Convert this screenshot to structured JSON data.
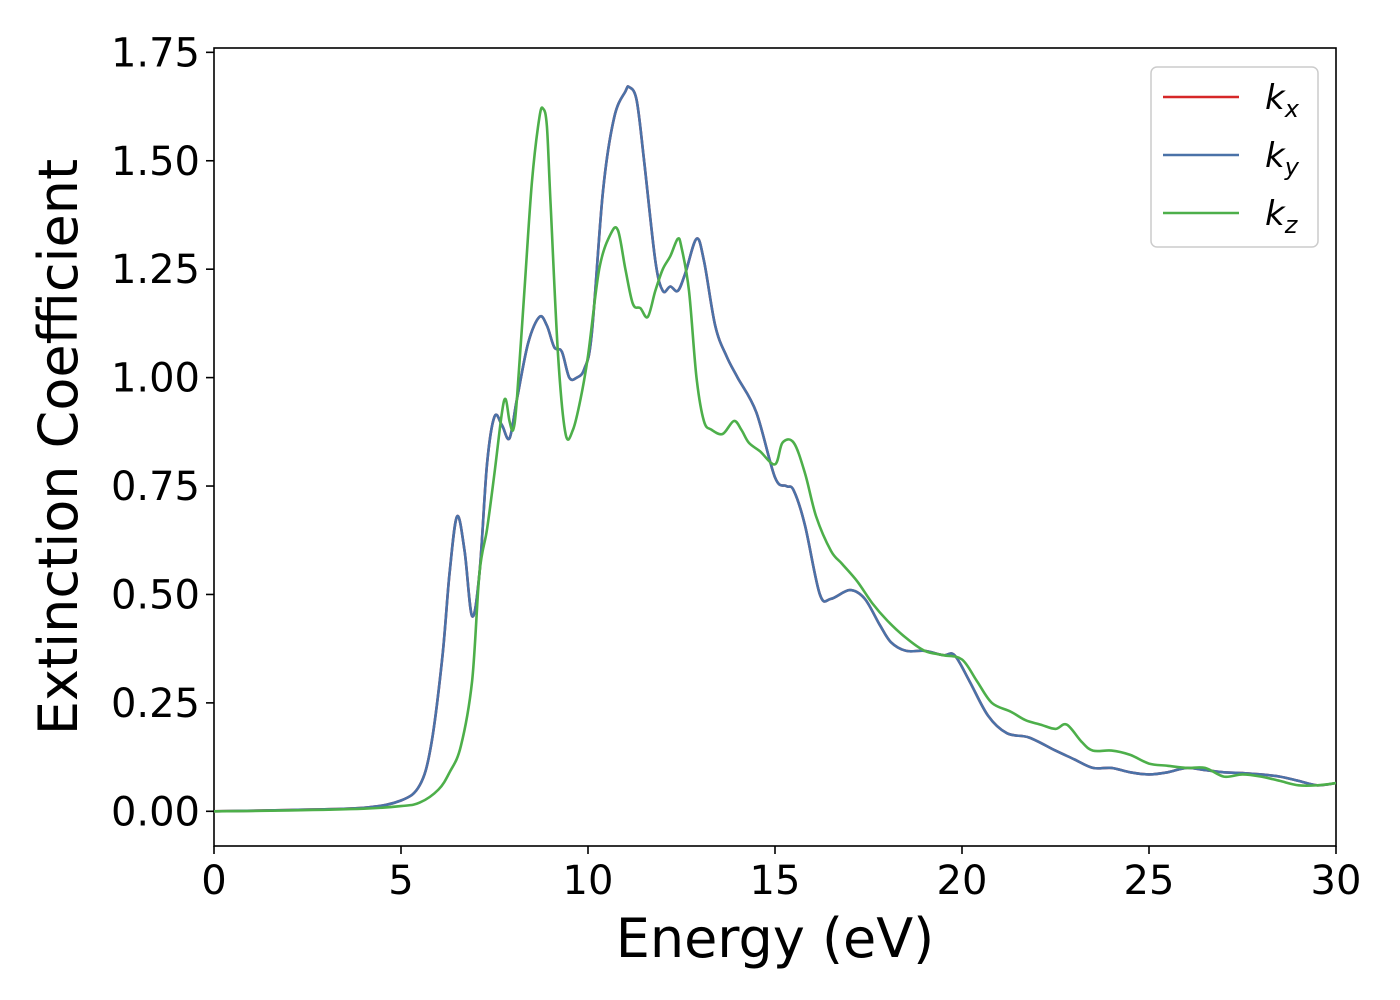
{
  "chart_data": {
    "type": "line",
    "xlabel": "Energy (eV)",
    "ylabel": "Extinction Coefficient",
    "xlim": [
      0,
      30
    ],
    "ylim": [
      -0.08,
      1.76
    ],
    "xticks": [
      0,
      5,
      10,
      15,
      20,
      25,
      30
    ],
    "xtick_labels": [
      "0",
      "5",
      "10",
      "15",
      "20",
      "25",
      "30"
    ],
    "yticks": [
      0.0,
      0.25,
      0.5,
      0.75,
      1.0,
      1.25,
      1.5,
      1.75
    ],
    "ytick_labels": [
      "0.00",
      "0.25",
      "0.50",
      "0.75",
      "1.00",
      "1.25",
      "1.50",
      "1.75"
    ],
    "grid": false,
    "legend_position": "top-right",
    "series": [
      {
        "name": "k_x",
        "label_base": "k",
        "label_sub": "x",
        "color": "#d62728",
        "x": [
          0,
          2,
          4,
          5,
          5.5,
          5.8,
          6.1,
          6.3,
          6.5,
          6.7,
          6.9,
          7.1,
          7.3,
          7.5,
          7.7,
          7.9,
          8.1,
          8.4,
          8.7,
          8.9,
          9.1,
          9.3,
          9.5,
          9.7,
          9.9,
          10.1,
          10.4,
          10.7,
          11.0,
          11.1,
          11.3,
          11.5,
          11.8,
          12.0,
          12.2,
          12.4,
          12.6,
          12.9,
          13.1,
          13.4,
          13.7,
          14.0,
          14.5,
          15.0,
          15.3,
          15.5,
          15.8,
          16.2,
          16.5,
          17.0,
          17.4,
          17.8,
          18.1,
          18.5,
          19.0,
          19.5,
          19.8,
          20.2,
          20.7,
          21.2,
          21.8,
          22.5,
          23.0,
          23.5,
          24.0,
          24.5,
          25.0,
          25.5,
          26.0,
          26.5,
          27.0,
          27.5,
          28.0,
          28.5,
          29.0,
          29.5,
          30.0
        ],
        "y": [
          0.0,
          0.003,
          0.008,
          0.025,
          0.06,
          0.15,
          0.35,
          0.55,
          0.68,
          0.6,
          0.45,
          0.55,
          0.8,
          0.91,
          0.89,
          0.86,
          0.95,
          1.08,
          1.14,
          1.12,
          1.07,
          1.06,
          1.0,
          1.0,
          1.02,
          1.1,
          1.43,
          1.6,
          1.66,
          1.67,
          1.64,
          1.5,
          1.27,
          1.2,
          1.21,
          1.2,
          1.24,
          1.32,
          1.27,
          1.12,
          1.05,
          1.0,
          0.92,
          0.77,
          0.75,
          0.74,
          0.66,
          0.5,
          0.49,
          0.51,
          0.49,
          0.43,
          0.39,
          0.37,
          0.37,
          0.36,
          0.36,
          0.3,
          0.22,
          0.18,
          0.17,
          0.14,
          0.12,
          0.1,
          0.1,
          0.09,
          0.085,
          0.09,
          0.1,
          0.095,
          0.09,
          0.088,
          0.085,
          0.08,
          0.07,
          0.06,
          0.065
        ]
      },
      {
        "name": "k_y",
        "label_base": "k",
        "label_sub": "y",
        "color": "#4a72a8",
        "x": [
          0,
          2,
          4,
          5,
          5.5,
          5.8,
          6.1,
          6.3,
          6.5,
          6.7,
          6.9,
          7.1,
          7.3,
          7.5,
          7.7,
          7.9,
          8.1,
          8.4,
          8.7,
          8.9,
          9.1,
          9.3,
          9.5,
          9.7,
          9.9,
          10.1,
          10.4,
          10.7,
          11.0,
          11.1,
          11.3,
          11.5,
          11.8,
          12.0,
          12.2,
          12.4,
          12.6,
          12.9,
          13.1,
          13.4,
          13.7,
          14.0,
          14.5,
          15.0,
          15.3,
          15.5,
          15.8,
          16.2,
          16.5,
          17.0,
          17.4,
          17.8,
          18.1,
          18.5,
          19.0,
          19.5,
          19.8,
          20.2,
          20.7,
          21.2,
          21.8,
          22.5,
          23.0,
          23.5,
          24.0,
          24.5,
          25.0,
          25.5,
          26.0,
          26.5,
          27.0,
          27.5,
          28.0,
          28.5,
          29.0,
          29.5,
          30.0
        ],
        "y": [
          0.0,
          0.003,
          0.008,
          0.025,
          0.06,
          0.15,
          0.35,
          0.55,
          0.68,
          0.6,
          0.45,
          0.55,
          0.8,
          0.91,
          0.89,
          0.86,
          0.95,
          1.08,
          1.14,
          1.12,
          1.07,
          1.06,
          1.0,
          1.0,
          1.02,
          1.1,
          1.43,
          1.6,
          1.66,
          1.67,
          1.64,
          1.5,
          1.27,
          1.2,
          1.21,
          1.2,
          1.24,
          1.32,
          1.27,
          1.12,
          1.05,
          1.0,
          0.92,
          0.77,
          0.75,
          0.74,
          0.66,
          0.5,
          0.49,
          0.51,
          0.49,
          0.43,
          0.39,
          0.37,
          0.37,
          0.36,
          0.36,
          0.3,
          0.22,
          0.18,
          0.17,
          0.14,
          0.12,
          0.1,
          0.1,
          0.09,
          0.085,
          0.09,
          0.1,
          0.095,
          0.09,
          0.088,
          0.085,
          0.08,
          0.07,
          0.06,
          0.065
        ]
      },
      {
        "name": "k_z",
        "label_base": "k",
        "label_sub": "z",
        "color": "#4daf4a",
        "x": [
          0,
          2,
          4,
          5,
          5.5,
          6.0,
          6.3,
          6.6,
          6.9,
          7.1,
          7.3,
          7.5,
          7.7,
          7.8,
          7.9,
          8.0,
          8.1,
          8.3,
          8.5,
          8.7,
          8.8,
          8.9,
          9.0,
          9.2,
          9.4,
          9.6,
          9.8,
          10.0,
          10.3,
          10.6,
          10.8,
          11.0,
          11.2,
          11.4,
          11.6,
          11.8,
          12.0,
          12.2,
          12.4,
          12.5,
          12.7,
          12.9,
          13.1,
          13.3,
          13.6,
          13.9,
          14.1,
          14.3,
          14.6,
          15.0,
          15.2,
          15.5,
          15.8,
          16.1,
          16.5,
          16.8,
          17.2,
          17.6,
          18.0,
          18.5,
          19.0,
          19.5,
          20.0,
          20.4,
          20.8,
          21.3,
          21.7,
          22.1,
          22.5,
          22.8,
          23.2,
          23.5,
          24.0,
          24.5,
          25.0,
          25.5,
          26.0,
          26.5,
          27.0,
          27.5,
          28.0,
          28.5,
          29.0,
          29.5,
          30.0
        ],
        "y": [
          0.0,
          0.002,
          0.006,
          0.012,
          0.02,
          0.05,
          0.09,
          0.15,
          0.3,
          0.55,
          0.65,
          0.78,
          0.92,
          0.95,
          0.9,
          0.88,
          0.95,
          1.2,
          1.45,
          1.6,
          1.62,
          1.58,
          1.4,
          1.05,
          0.87,
          0.88,
          0.95,
          1.05,
          1.25,
          1.33,
          1.34,
          1.25,
          1.17,
          1.16,
          1.14,
          1.2,
          1.25,
          1.28,
          1.32,
          1.3,
          1.2,
          1.0,
          0.9,
          0.88,
          0.87,
          0.9,
          0.88,
          0.85,
          0.83,
          0.8,
          0.85,
          0.85,
          0.78,
          0.68,
          0.6,
          0.57,
          0.53,
          0.48,
          0.44,
          0.4,
          0.37,
          0.36,
          0.35,
          0.3,
          0.25,
          0.23,
          0.21,
          0.2,
          0.19,
          0.2,
          0.16,
          0.14,
          0.14,
          0.13,
          0.11,
          0.105,
          0.1,
          0.1,
          0.08,
          0.085,
          0.08,
          0.07,
          0.06,
          0.06,
          0.065
        ]
      }
    ]
  }
}
